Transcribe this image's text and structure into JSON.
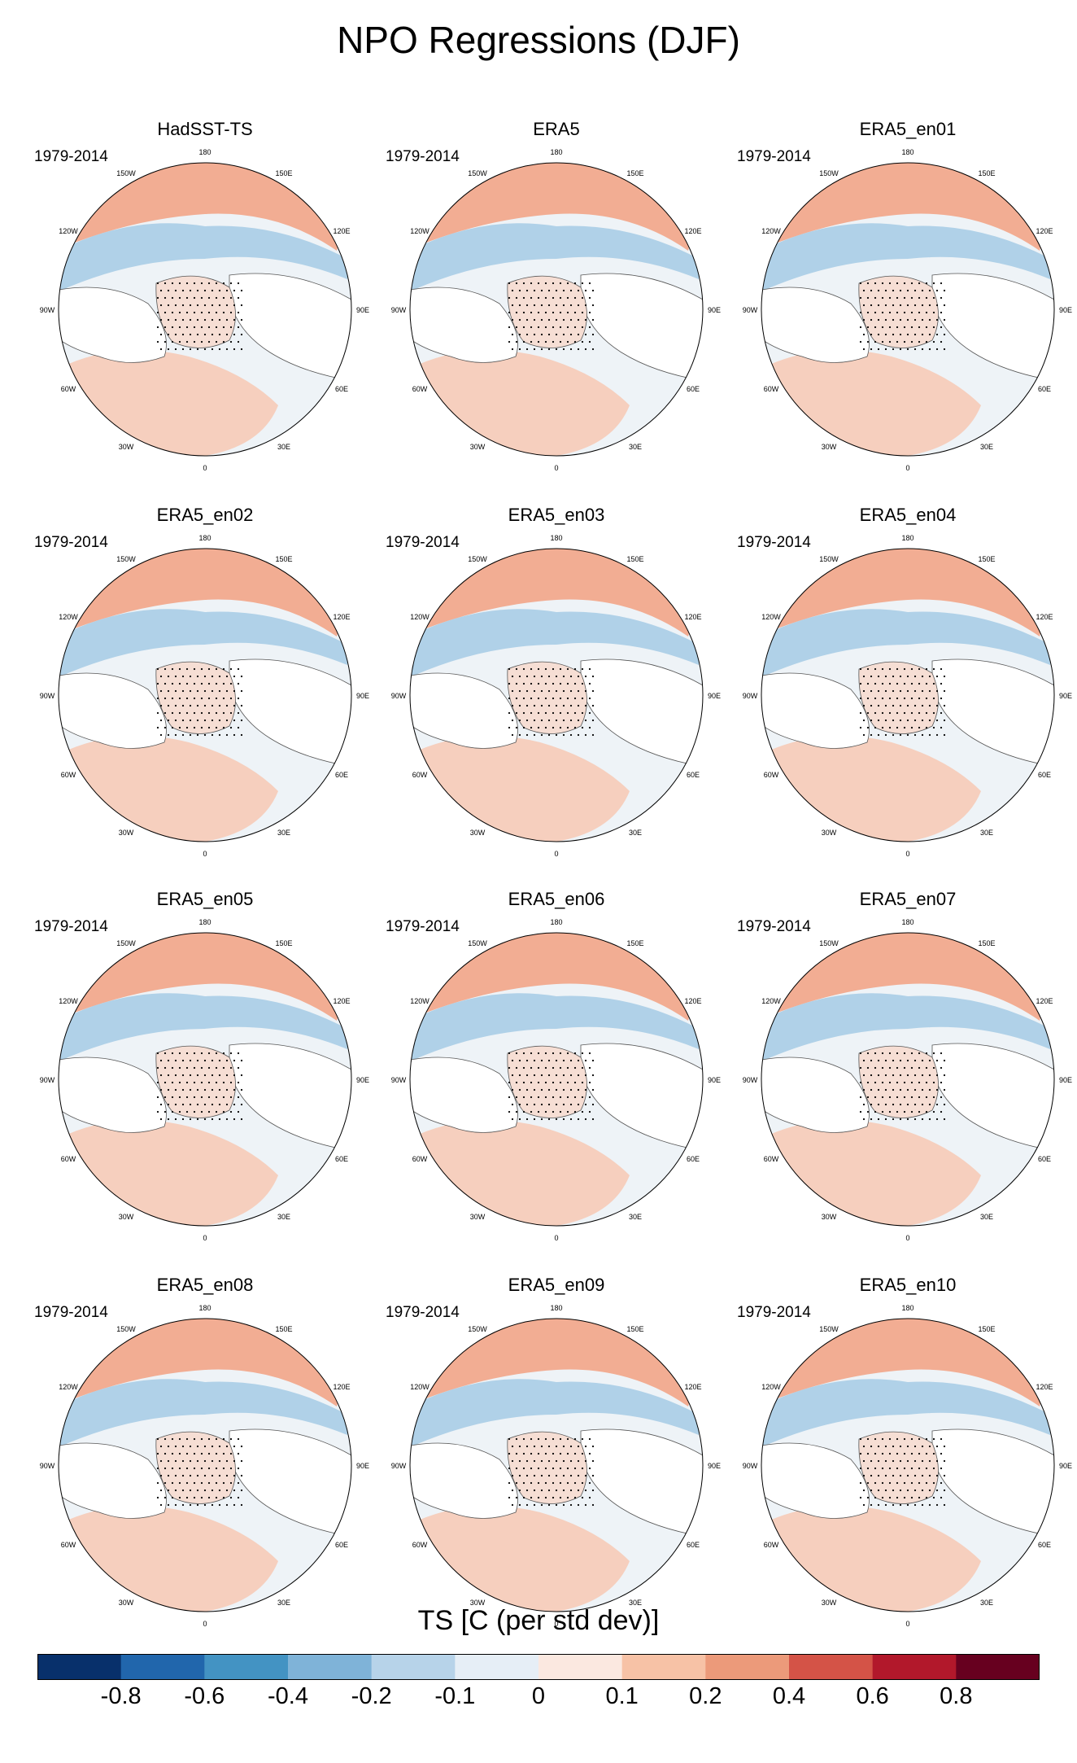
{
  "title": "NPO Regressions (DJF)",
  "period": "1979-2014",
  "panels": [
    {
      "name": "HadSST-TS"
    },
    {
      "name": "ERA5"
    },
    {
      "name": "ERA5_en01"
    },
    {
      "name": "ERA5_en02"
    },
    {
      "name": "ERA5_en03"
    },
    {
      "name": "ERA5_en04"
    },
    {
      "name": "ERA5_en05"
    },
    {
      "name": "ERA5_en06"
    },
    {
      "name": "ERA5_en07"
    },
    {
      "name": "ERA5_en08"
    },
    {
      "name": "ERA5_en09"
    },
    {
      "name": "ERA5_en10"
    }
  ],
  "longitude_labels": [
    "180",
    "150E",
    "120E",
    "90E",
    "60E",
    "30E",
    "0",
    "30W",
    "60W",
    "90W",
    "120W",
    "150W"
  ],
  "colorbar": {
    "title": "TS [C (per std dev)]",
    "labels": [
      "-0.8",
      "-0.6",
      "-0.4",
      "-0.2",
      "-0.1",
      "0",
      "0.1",
      "0.2",
      "0.4",
      "0.6",
      "0.8"
    ],
    "colors": [
      "#08306b",
      "#2166ac",
      "#4393c3",
      "#7fb3d8",
      "#b7d3e9",
      "#e6eef6",
      "#fbe8e0",
      "#f7c2a6",
      "#ec9a7a",
      "#d45347",
      "#b2182b",
      "#67001f"
    ]
  }
}
